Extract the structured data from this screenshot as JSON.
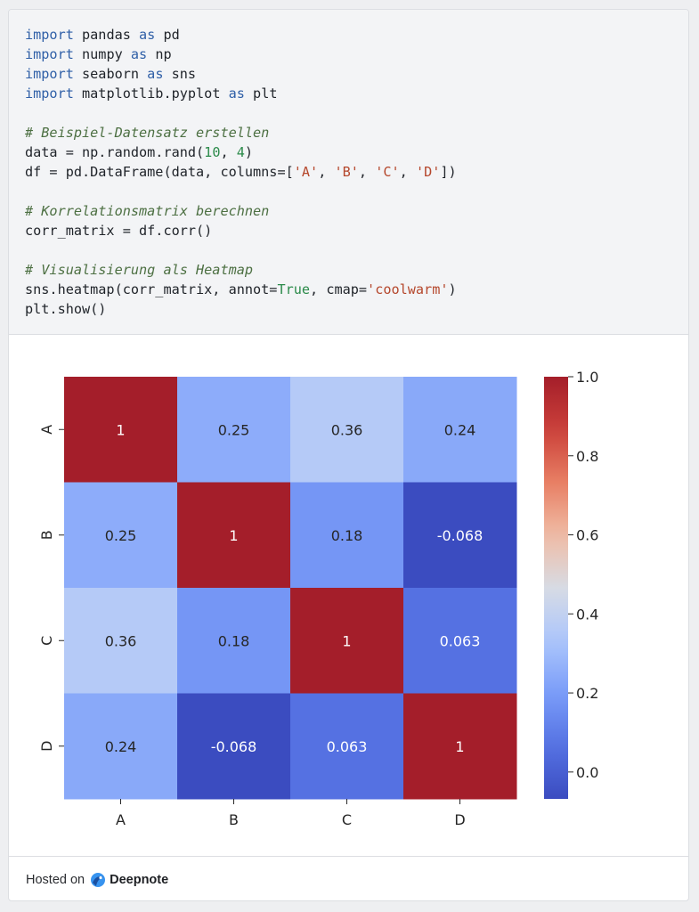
{
  "code": {
    "lines": [
      [
        {
          "t": "import",
          "c": "kw"
        },
        {
          "t": " pandas "
        },
        {
          "t": "as",
          "c": "kw"
        },
        {
          "t": " pd"
        }
      ],
      [
        {
          "t": "import",
          "c": "kw"
        },
        {
          "t": " numpy "
        },
        {
          "t": "as",
          "c": "kw"
        },
        {
          "t": " np"
        }
      ],
      [
        {
          "t": "import",
          "c": "kw"
        },
        {
          "t": " seaborn "
        },
        {
          "t": "as",
          "c": "kw"
        },
        {
          "t": " sns"
        }
      ],
      [
        {
          "t": "import",
          "c": "kw"
        },
        {
          "t": " matplotlib.pyplot "
        },
        {
          "t": "as",
          "c": "kw"
        },
        {
          "t": " plt"
        }
      ],
      [],
      [
        {
          "t": "# Beispiel-Datensatz erstellen",
          "c": "cm"
        }
      ],
      [
        {
          "t": "data = np.random.rand("
        },
        {
          "t": "10",
          "c": "nm"
        },
        {
          "t": ", "
        },
        {
          "t": "4",
          "c": "nm"
        },
        {
          "t": ")"
        }
      ],
      [
        {
          "t": "df = pd.DataFrame(data, columns=["
        },
        {
          "t": "'A'",
          "c": "st"
        },
        {
          "t": ", "
        },
        {
          "t": "'B'",
          "c": "st"
        },
        {
          "t": ", "
        },
        {
          "t": "'C'",
          "c": "st"
        },
        {
          "t": ", "
        },
        {
          "t": "'D'",
          "c": "st"
        },
        {
          "t": "])"
        }
      ],
      [],
      [
        {
          "t": "# Korrelationsmatrix berechnen",
          "c": "cm"
        }
      ],
      [
        {
          "t": "corr_matrix = df.corr()"
        }
      ],
      [],
      [
        {
          "t": "# Visualisierung als Heatmap",
          "c": "cm"
        }
      ],
      [
        {
          "t": "sns.heatmap(corr_matrix, annot="
        },
        {
          "t": "True",
          "c": "bool"
        },
        {
          "t": ", cmap="
        },
        {
          "t": "'coolwarm'",
          "c": "st"
        },
        {
          "t": ")"
        }
      ],
      [
        {
          "t": "plt.show()"
        }
      ]
    ]
  },
  "chart_data": {
    "type": "heatmap",
    "rows": [
      "A",
      "B",
      "C",
      "D"
    ],
    "columns": [
      "A",
      "B",
      "C",
      "D"
    ],
    "values": [
      [
        1,
        0.25,
        0.36,
        0.24
      ],
      [
        0.25,
        1,
        0.18,
        -0.068
      ],
      [
        0.36,
        0.18,
        1,
        0.063
      ],
      [
        0.24,
        -0.068,
        0.063,
        1
      ]
    ],
    "labels": [
      [
        "1",
        "0.25",
        "0.36",
        "0.24"
      ],
      [
        "0.25",
        "1",
        "0.18",
        "-0.068"
      ],
      [
        "0.36",
        "0.18",
        "1",
        "0.063"
      ],
      [
        "0.24",
        "-0.068",
        "0.063",
        "1"
      ]
    ],
    "colormap": "coolwarm",
    "vmin": -0.068,
    "vmax": 1.0,
    "colorbar_ticks": [
      0.0,
      0.2,
      0.4,
      0.6,
      0.8,
      1.0
    ],
    "colorbar_labels": [
      "0.0",
      "0.2",
      "0.4",
      "0.6",
      "0.8",
      "1.0"
    ],
    "title": "",
    "xlabel": "",
    "ylabel": ""
  },
  "footer": {
    "hosted_text": "Hosted on",
    "brand": "Deepnote",
    "brand_icon": "deepnote-logo-icon"
  }
}
